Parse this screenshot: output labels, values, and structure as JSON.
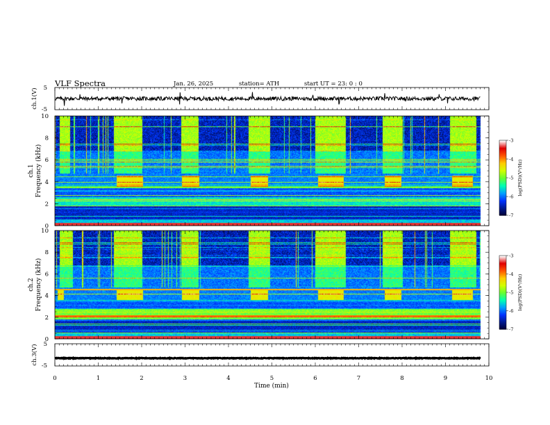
{
  "header": {
    "title": "VLF  Spectra",
    "date": "Jan. 26, 2025",
    "station": "station= ATH",
    "start": "start  UT  =   23: 0  : 0"
  },
  "colors": {
    "spectral": [
      "#000033",
      "#001a8c",
      "#0033ff",
      "#00a0ff",
      "#00ffb4",
      "#66ff33",
      "#d2ff00",
      "#ffcc00",
      "#ff5500",
      "#e10000",
      "#ffffff"
    ],
    "trace": "#000000"
  },
  "chart_data": [
    {
      "type": "line",
      "name": "ch1-time-series",
      "ylabel": "ch.1(V)",
      "ylim": [
        -5,
        5
      ],
      "yticks": [
        "5",
        "-5"
      ],
      "x_range": [
        0,
        9.8
      ],
      "baseline": 0,
      "noise_amp": 0.9,
      "spikes": [
        0.22,
        0.58,
        1.55,
        2.88,
        4.55,
        5.95,
        6.55,
        7.6,
        8.85,
        9.05
      ]
    },
    {
      "type": "heatmap",
      "name": "ch1-spectrogram",
      "ylabel": "ch.1\nFrequency (kHz)",
      "ylim": [
        0,
        10
      ],
      "yticks": [
        "0",
        "2",
        "4",
        "6",
        "8",
        "10"
      ],
      "x_range": [
        0,
        9.8
      ],
      "colorbar": {
        "label": "log(PSD)(V²/Hz)",
        "range": [
          -7,
          -3
        ],
        "ticks": [
          "-3",
          "-4",
          "-5",
          "-6",
          "-7"
        ]
      },
      "transmitter_bursts": [
        [
          1.42,
          2.02
        ],
        [
          2.92,
          3.32
        ],
        [
          4.5,
          4.9
        ],
        [
          6.05,
          6.65
        ],
        [
          7.6,
          7.98
        ],
        [
          9.15,
          9.62
        ]
      ],
      "burst_band_khz": [
        3.6,
        4.6
      ],
      "green_regions": [
        [
          0.1,
          0.35
        ],
        [
          1.35,
          2.0
        ],
        [
          2.9,
          3.3
        ],
        [
          4.45,
          4.95
        ],
        [
          6.0,
          6.7
        ],
        [
          7.55,
          8.0
        ],
        [
          9.1,
          9.7
        ]
      ],
      "baseline_band_khz": [
        1.8,
        2.6
      ]
    },
    {
      "type": "heatmap",
      "name": "ch2-spectrogram",
      "ylabel": "ch.2\nFrequency (kHz)",
      "ylim": [
        0,
        10
      ],
      "yticks": [
        "0",
        "2",
        "4",
        "6",
        "8",
        "10"
      ],
      "x_range": [
        0,
        9.8
      ],
      "colorbar": {
        "label": "log(PSD)(V²/Hz)",
        "range": [
          -7,
          -3
        ],
        "ticks": [
          "-3",
          "-4",
          "-5",
          "-6",
          "-7"
        ]
      },
      "transmitter_bursts": [
        [
          0.05,
          0.2
        ],
        [
          1.42,
          2.02
        ],
        [
          2.92,
          3.32
        ],
        [
          4.5,
          4.9
        ],
        [
          6.05,
          6.65
        ],
        [
          7.6,
          7.98
        ],
        [
          9.15,
          9.62
        ]
      ],
      "burst_band_khz": [
        3.6,
        4.6
      ],
      "green_regions": [
        [
          0.1,
          0.4
        ],
        [
          1.35,
          2.0
        ],
        [
          2.9,
          3.3
        ],
        [
          4.45,
          4.95
        ],
        [
          6.0,
          6.7
        ],
        [
          7.55,
          8.0
        ],
        [
          9.1,
          9.7
        ]
      ],
      "baseline_band_khz": [
        1.8,
        2.8
      ]
    },
    {
      "type": "line",
      "name": "ch3-time-series",
      "ylabel": "ch.3(V)",
      "ylim": [
        -5,
        5
      ],
      "yticks": [
        "5",
        "-5"
      ],
      "x_range": [
        0,
        9.8
      ],
      "baseline": -1.5,
      "noise_amp": 0.15
    }
  ],
  "xaxis": {
    "label": "Time  (min)",
    "range": [
      0,
      10
    ],
    "ticks": [
      "0",
      "1",
      "2",
      "3",
      "4",
      "5",
      "6",
      "7",
      "8",
      "9",
      "10"
    ]
  }
}
